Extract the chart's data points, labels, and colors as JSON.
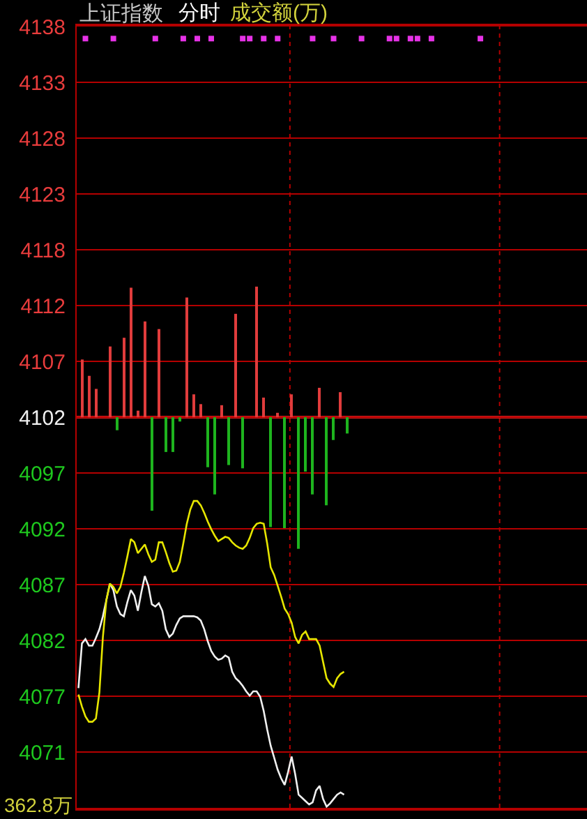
{
  "chart_data": {
    "type": "line",
    "title": "上证指数",
    "subtitle": "分时",
    "annotations": [
      "成交额(万)",
      "362.8万"
    ],
    "categories": [
      null,
      null,
      null,
      null,
      null,
      null,
      null,
      null,
      null,
      null,
      null,
      null,
      null,
      null,
      null,
      null,
      null,
      null,
      null,
      null,
      null,
      null,
      null,
      null,
      null,
      null,
      null,
      null,
      null,
      null,
      null,
      null,
      null,
      null,
      null,
      null,
      null,
      null,
      null,
      null,
      null,
      null,
      null,
      null,
      null,
      null,
      null,
      null,
      null,
      null,
      null,
      null,
      null,
      null,
      null,
      null,
      null,
      null,
      null,
      null,
      null,
      null,
      null,
      null,
      null,
      null,
      null,
      null,
      null,
      null,
      null,
      null,
      null,
      null,
      null,
      null,
      null,
      null,
      null,
      null,
      null,
      null,
      null,
      null,
      null,
      null,
      null,
      null,
      null,
      null,
      null,
      null,
      null,
      null,
      null,
      null,
      null,
      null,
      null,
      null,
      null,
      null,
      null,
      null,
      null,
      null,
      null,
      null,
      null,
      null,
      null,
      null,
      null,
      null,
      null,
      null,
      null,
      null,
      null,
      null,
      null,
      null,
      null,
      null,
      null,
      null,
      null,
      null,
      null,
      null,
      null,
      null,
      null,
      null,
      null,
      null,
      null,
      null,
      null,
      null,
      null,
      null,
      null,
      null,
      null,
      null
    ],
    "ylim": [
      4066.29,
      4138.11
    ],
    "yticks": [
      {
        "value": 4138.11,
        "label": "4138"
      },
      {
        "value": 4132.98,
        "label": "4133"
      },
      {
        "value": 4127.85,
        "label": "4128"
      },
      {
        "value": 4122.72,
        "label": "4123"
      },
      {
        "value": 4117.59,
        "label": "4118"
      },
      {
        "value": 4112.46,
        "label": "4112"
      },
      {
        "value": 4107.33,
        "label": "4107"
      },
      {
        "value": 4102.2,
        "label": "4102"
      },
      {
        "value": 4097.07,
        "label": "4097"
      },
      {
        "value": 4091.94,
        "label": "4092"
      },
      {
        "value": 4086.81,
        "label": "4087"
      },
      {
        "value": 4081.68,
        "label": "4082"
      },
      {
        "value": 4076.55,
        "label": "4077"
      },
      {
        "value": 4071.42,
        "label": "4071"
      }
    ],
    "grid": "y",
    "tick_labels": "y",
    "ref_lines": [
      {
        "axis": "y",
        "value": 4102.2,
        "color": "#d21e1e"
      }
    ],
    "series": [
      {
        "type": "bar",
        "values": [
          null,
          5.3,
          null,
          3.8,
          null,
          2.6,
          null,
          null,
          null,
          6.5,
          null,
          -1.2,
          null,
          7.3,
          null,
          11.9,
          null,
          0.6,
          null,
          8.8,
          null,
          -8.6,
          null,
          8.1,
          null,
          -3.2,
          null,
          -3.2,
          null,
          -0.4,
          null,
          11.0,
          null,
          2.1,
          null,
          1.2,
          null,
          -4.6,
          null,
          -7.1,
          null,
          1.1,
          null,
          -4.4,
          null,
          9.5,
          null,
          -4.7,
          null,
          null,
          null,
          12.0,
          null,
          1.8,
          null,
          -10.1,
          null,
          0.4,
          null,
          -10.2,
          null,
          2.1,
          null,
          -12.1,
          null,
          -5.0,
          null,
          -7.1,
          null,
          2.7,
          null,
          -8.1,
          null,
          -2.1,
          null,
          2.3,
          null,
          -1.5,
          null,
          null,
          null,
          null,
          null,
          null,
          null,
          null,
          null,
          null,
          null,
          null,
          null,
          null,
          null,
          null,
          null,
          null,
          null,
          null,
          null,
          null,
          null,
          null,
          null,
          null,
          null,
          null,
          null,
          null,
          null,
          null,
          null,
          null,
          null,
          null,
          null,
          null,
          null,
          null,
          null,
          null,
          null,
          null,
          null,
          null,
          null,
          null,
          null,
          null,
          null,
          null,
          null,
          null,
          null,
          null,
          null,
          null,
          null,
          null,
          null,
          null,
          null,
          null,
          null,
          null,
          null,
          null
        ],
        "base": [
          null,
          4102.2,
          null,
          4102.2,
          null,
          4102.2,
          null,
          null,
          null,
          4102.2,
          null,
          4102.2,
          null,
          4102.2,
          null,
          4102.2,
          null,
          4102.2,
          null,
          4102.2,
          null,
          4102.2,
          null,
          4102.2,
          null,
          4102.2,
          null,
          4102.2,
          null,
          4102.2,
          null,
          4102.2,
          null,
          4102.2,
          null,
          4102.2,
          null,
          4102.2,
          null,
          4102.2,
          null,
          4102.2,
          null,
          4102.2,
          null,
          4102.2,
          null,
          4102.2,
          null,
          null,
          null,
          4102.2,
          null,
          4102.2,
          null,
          4102.2,
          null,
          4102.2,
          null,
          4102.2,
          null,
          4102.2,
          null,
          4102.2,
          null,
          4102.2,
          null,
          4102.2,
          null,
          4102.2,
          null,
          4102.2,
          null,
          4102.2,
          null,
          4102.2,
          null,
          4102.2,
          null,
          null,
          null,
          null,
          null,
          null,
          null,
          null,
          null,
          null,
          null,
          null,
          null,
          null,
          null,
          null,
          null,
          null,
          null,
          null,
          null,
          null,
          null,
          null,
          null,
          null,
          null,
          null,
          null,
          null,
          null,
          null,
          null,
          null,
          null,
          null,
          null,
          null,
          null,
          null,
          null,
          null,
          null,
          null,
          null,
          null,
          null,
          null,
          null,
          null,
          null,
          null,
          null,
          null,
          null,
          null,
          null,
          null,
          null,
          null,
          null,
          null,
          null,
          null,
          null,
          null,
          null,
          null
        ],
        "colors": [
          null,
          "#e03c3c",
          null,
          "#e03c3c",
          null,
          "#e03c3c",
          null,
          null,
          null,
          "#e03c3c",
          null,
          "#1eb41e",
          null,
          "#e03c3c",
          null,
          "#e03c3c",
          null,
          "#e03c3c",
          null,
          "#e03c3c",
          null,
          "#1eb41e",
          null,
          "#e03c3c",
          null,
          "#1eb41e",
          null,
          "#1eb41e",
          null,
          "#1eb41e",
          null,
          "#e03c3c",
          null,
          "#e03c3c",
          null,
          "#e03c3c",
          null,
          "#1eb41e",
          null,
          "#1eb41e",
          null,
          "#e03c3c",
          null,
          "#1eb41e",
          null,
          "#e03c3c",
          null,
          "#1eb41e",
          null,
          null,
          null,
          "#e03c3c",
          null,
          "#e03c3c",
          null,
          "#1eb41e",
          null,
          "#e03c3c",
          null,
          "#1eb41e",
          null,
          "#e03c3c",
          null,
          "#1eb41e",
          null,
          "#1eb41e",
          null,
          "#1eb41e",
          null,
          "#e03c3c",
          null,
          "#1eb41e",
          null,
          "#1eb41e",
          null,
          "#e03c3c",
          null,
          "#1eb41e",
          null,
          null,
          null,
          null,
          null,
          null,
          null,
          null,
          null,
          null,
          null,
          null,
          null,
          null,
          null,
          null,
          null,
          null,
          null,
          null,
          null,
          null,
          null,
          null,
          null,
          null,
          null,
          null,
          null,
          null,
          null,
          null,
          null,
          null,
          null,
          null,
          null,
          null,
          null,
          null,
          null,
          null,
          null,
          null,
          null,
          null,
          null,
          null,
          null,
          null,
          null,
          null,
          null,
          null,
          null,
          null,
          null,
          null,
          null,
          null,
          null,
          null,
          null,
          null,
          null,
          null,
          null,
          null
        ]
      },
      {
        "color": "#f0f0f0",
        "values": [
          4077.3,
          4081.4,
          4081.8,
          4081.2,
          4081.2,
          4081.9,
          4082.7,
          4083.9,
          4085.4,
          4086.9,
          4086.3,
          4084.8,
          4084.1,
          4083.9,
          4085.2,
          4086.3,
          4085.8,
          4084.4,
          4086.1,
          4087.6,
          4086.7,
          4085.0,
          4084.8,
          4085.1,
          4084.4,
          4082.7,
          4082.0,
          4082.3,
          4083.1,
          4083.7,
          4083.9,
          4083.9,
          4083.9,
          4083.9,
          4083.8,
          4083.5,
          4082.7,
          4081.6,
          4080.7,
          4080.2,
          4079.9,
          4080.0,
          4080.3,
          4080.1,
          4078.8,
          4078.2,
          4077.9,
          4077.5,
          4077.0,
          4076.6,
          4077.0,
          4077.0,
          4076.5,
          4075.2,
          4073.5,
          4072.0,
          4070.9,
          4069.8,
          4069.0,
          4068.4,
          4069.6,
          4071.0,
          4069.4,
          4067.5,
          4067.2,
          4066.9,
          4066.6,
          4066.8,
          4067.9,
          4068.3,
          4067.1,
          4066.4,
          4066.7,
          4067.1,
          4067.5,
          4067.7,
          4067.5,
          null,
          null,
          null,
          null,
          null,
          null,
          null,
          null,
          null,
          null,
          null,
          null,
          null,
          null,
          null,
          null,
          null,
          null,
          null,
          null,
          null,
          null,
          null,
          null,
          null,
          null,
          null,
          null,
          null,
          null,
          null,
          null,
          null,
          null,
          null,
          null,
          null,
          null,
          null,
          null,
          null,
          null,
          null,
          null,
          null,
          null,
          null,
          null,
          null,
          null,
          null,
          null,
          null,
          null,
          null,
          null,
          null,
          null,
          null,
          null,
          null,
          null,
          null,
          null,
          null,
          null,
          null,
          null,
          null
        ]
      },
      {
        "color": "#e6e600",
        "values": [
          4076.7,
          4075.6,
          4074.7,
          4074.2,
          4074.2,
          4074.5,
          4076.9,
          4082.0,
          4085.4,
          4086.9,
          4086.6,
          4086.0,
          4086.6,
          4087.9,
          4089.4,
          4091.0,
          4090.7,
          4089.7,
          4090.1,
          4090.5,
          4089.6,
          4088.9,
          4089.1,
          4090.7,
          4090.7,
          4089.8,
          4088.8,
          4088.0,
          4088.1,
          4088.9,
          4090.6,
          4092.4,
          4093.7,
          4094.5,
          4094.5,
          4094.1,
          4093.4,
          4092.6,
          4091.9,
          4091.3,
          4090.8,
          4091.0,
          4091.2,
          4091.1,
          4090.7,
          4090.4,
          4090.2,
          4090.1,
          4090.4,
          4091.1,
          4092.0,
          4092.4,
          4092.5,
          4092.4,
          4090.6,
          4088.4,
          4087.7,
          4086.7,
          4085.7,
          4084.6,
          4084.1,
          4083.3,
          4082.0,
          4081.4,
          4082.2,
          4082.5,
          4081.8,
          4081.8,
          4081.8,
          4081.2,
          4079.7,
          4078.2,
          4077.7,
          4077.4,
          4078.2,
          4078.6,
          4078.8,
          null,
          null,
          null,
          null,
          null,
          null,
          null,
          null,
          null,
          null,
          null,
          null,
          null,
          null,
          null,
          null,
          null,
          null,
          null,
          null,
          null,
          null,
          null,
          null,
          null,
          null,
          null,
          null,
          null,
          null,
          null,
          null,
          null,
          null,
          null,
          null,
          null,
          null,
          null,
          null,
          null,
          null,
          null,
          null,
          null,
          null,
          null,
          null,
          null,
          null,
          null,
          null,
          null,
          null,
          null,
          null,
          null,
          null,
          null,
          null,
          null,
          null,
          null,
          null,
          null,
          null,
          null,
          null,
          null
        ]
      },
      {
        "type": "scatter",
        "marker": "square",
        "color": "#e632e6",
        "values": [
          null,
          null,
          4137.0,
          null,
          null,
          null,
          null,
          null,
          null,
          null,
          4137.0,
          null,
          null,
          null,
          null,
          null,
          null,
          null,
          null,
          null,
          null,
          null,
          4137.0,
          null,
          null,
          null,
          null,
          null,
          null,
          null,
          4137.0,
          null,
          null,
          null,
          4137.0,
          null,
          null,
          null,
          4137.0,
          null,
          null,
          null,
          null,
          null,
          null,
          null,
          null,
          4137.0,
          null,
          4137.0,
          null,
          null,
          null,
          4137.0,
          null,
          null,
          null,
          4137.0,
          null,
          null,
          null,
          null,
          null,
          null,
          null,
          null,
          null,
          4137.0,
          null,
          null,
          null,
          null,
          null,
          4137.0,
          null,
          null,
          null,
          null,
          null,
          null,
          null,
          4137.0,
          null,
          null,
          null,
          null,
          null,
          null,
          null,
          4137.0,
          null,
          4137.0,
          null,
          null,
          null,
          4137.0,
          null,
          4137.0,
          null,
          null,
          null,
          4137.0,
          null,
          null,
          null,
          null,
          null,
          null,
          null,
          null,
          null,
          null,
          null,
          null,
          null,
          4137.0,
          null,
          null,
          null,
          null,
          null,
          null,
          null,
          null,
          null,
          null,
          null,
          null,
          null,
          null,
          null,
          null,
          null,
          null,
          null,
          null,
          null,
          null,
          null,
          null,
          null,
          null,
          null,
          null,
          null,
          null
        ]
      }
    ]
  }
}
